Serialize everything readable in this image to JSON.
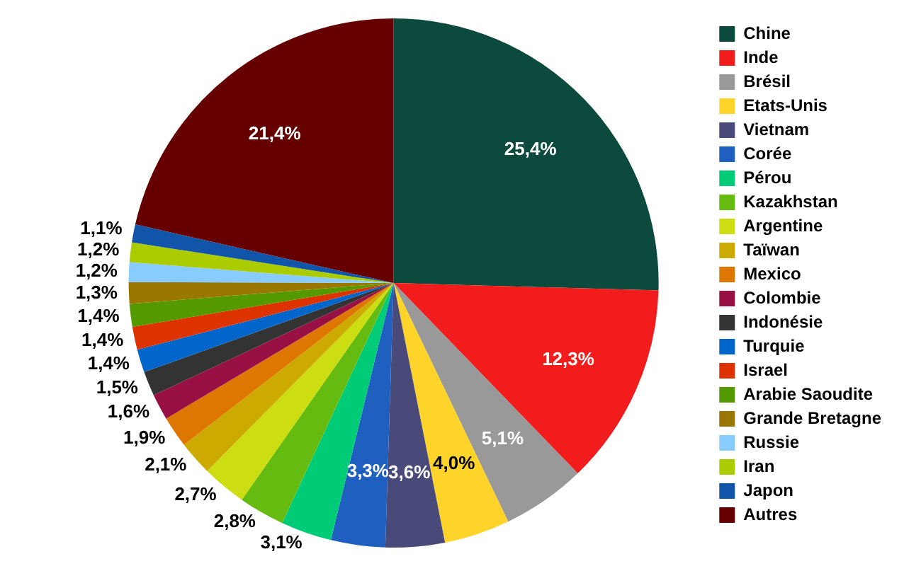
{
  "chart_data": {
    "type": "pie",
    "categories": [
      "Chine",
      "Inde",
      "Brésil",
      "Etats-Unis",
      "Vietnam",
      "Corée",
      "Pérou",
      "Kazakhstan",
      "Argentine",
      "Taïwan",
      "Mexico",
      "Colombie",
      "Indonésie",
      "Turquie",
      "Israel",
      "Arabie Saoudite",
      "Grande Bretagne",
      "Russie",
      "Iran",
      "Japon",
      "Autres"
    ],
    "values": [
      25.4,
      12.3,
      5.1,
      4.0,
      3.6,
      3.3,
      3.1,
      2.8,
      2.7,
      2.1,
      1.9,
      1.6,
      1.5,
      1.4,
      1.4,
      1.4,
      1.3,
      1.2,
      1.2,
      1.1,
      21.4
    ],
    "value_labels": [
      "25,4%",
      "12,3%",
      "5,1%",
      "4,0%",
      "3,6%",
      "3,3%",
      "3,1%",
      "2,8%",
      "2,7%",
      "2,1%",
      "1,9%",
      "1,6%",
      "1,5%",
      "1,4%",
      "1,4%",
      "1,4%",
      "1,3%",
      "1,2%",
      "1,2%",
      "1,1%",
      "21,4%"
    ],
    "colors": [
      "#0b4a3c",
      "#f21c1c",
      "#999999",
      "#ffd42a",
      "#4a4a7a",
      "#1f5fbf",
      "#00cc77",
      "#66bb11",
      "#ccdd11",
      "#ccaa00",
      "#dd7700",
      "#991144",
      "#333333",
      "#0066cc",
      "#dd3300",
      "#559900",
      "#997700",
      "#88ccff",
      "#aacc00",
      "#1155aa",
      "#660000"
    ],
    "legend": "right"
  }
}
